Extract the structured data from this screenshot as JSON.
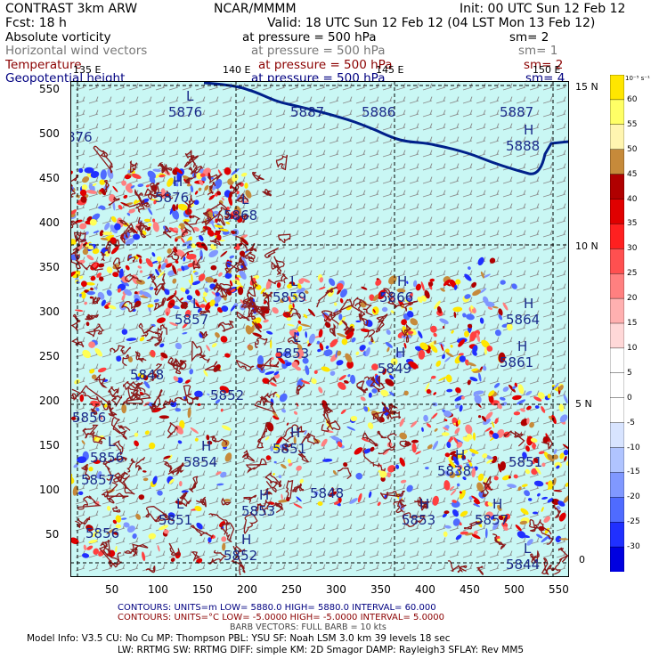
{
  "header": {
    "row1_left": "CONTRAST 3km ARW",
    "row1_center": "NCAR/MMMM",
    "row1_right": "Init: 00 UTC Sun 12 Feb 12",
    "row2_left": "Fcst: 18 h",
    "row2_right": "Valid: 18 UTC Sun 12 Feb 12 (04 LST Mon 13 Feb 12)",
    "fields": [
      {
        "name": "Absolute vorticity",
        "level": "at pressure =  500 hPa",
        "smooth": "sm= 2",
        "color": "#000000"
      },
      {
        "name": "Horizontal wind vectors",
        "level": "at pressure =  500 hPa",
        "smooth": "sm= 1",
        "color": "#777777"
      },
      {
        "name": "Temperature",
        "level": "at pressure =  500 hPa",
        "smooth": "sm= 2",
        "color": "#8b0000"
      },
      {
        "name": "Geopotential height",
        "level": "at pressure =  500 hPa",
        "smooth": "sm= 4",
        "color": "#000080"
      }
    ]
  },
  "map": {
    "x_ticks": [
      "50",
      "100",
      "150",
      "200",
      "250",
      "300",
      "350",
      "400",
      "450",
      "500",
      "550"
    ],
    "y_ticks": [
      "50",
      "100",
      "150",
      "200",
      "250",
      "300",
      "350",
      "400",
      "450",
      "500",
      "550"
    ],
    "lon_labels": [
      "135 E",
      "140 E",
      "145 E",
      "150 E"
    ],
    "lat_labels": [
      "15 N",
      "10 N",
      "5 N",
      "0"
    ],
    "height_labels": [
      {
        "mark": "L",
        "value": "5876"
      },
      {
        "mark": "",
        "value": "5887"
      },
      {
        "mark": "",
        "value": "5886"
      },
      {
        "mark": "",
        "value": "5887"
      },
      {
        "mark": "H",
        "value": "5888"
      },
      {
        "mark": "",
        "value": "876"
      },
      {
        "mark": "H",
        "value": "5876"
      },
      {
        "mark": "L",
        "value": "5868"
      },
      {
        "mark": "L",
        "value": "5859"
      },
      {
        "mark": "H",
        "value": "5866"
      },
      {
        "mark": "H",
        "value": "5864"
      },
      {
        "mark": "L",
        "value": "5857"
      },
      {
        "mark": "L",
        "value": "5853"
      },
      {
        "mark": "H",
        "value": "5849"
      },
      {
        "mark": "H",
        "value": "5861"
      },
      {
        "mark": "",
        "value": "5848"
      },
      {
        "mark": "",
        "value": "5852"
      },
      {
        "mark": "",
        "value": "5856"
      },
      {
        "mark": "H",
        "value": "5851"
      },
      {
        "mark": "L",
        "value": "5856"
      },
      {
        "mark": "H",
        "value": "5854"
      },
      {
        "mark": "H",
        "value": "5838"
      },
      {
        "mark": "",
        "value": "5851"
      },
      {
        "mark": "",
        "value": "5857"
      },
      {
        "mark": "",
        "value": "5848"
      },
      {
        "mark": "L",
        "value": "5851"
      },
      {
        "mark": "H",
        "value": "5853"
      },
      {
        "mark": "H",
        "value": "5853"
      },
      {
        "mark": "H",
        "value": "5857"
      },
      {
        "mark": "",
        "value": "5856"
      },
      {
        "mark": "H",
        "value": "5852"
      },
      {
        "mark": "L",
        "value": "5844"
      },
      {
        "mark": "",
        "value": "5847"
      },
      {
        "mark": "",
        "value": "5861"
      }
    ]
  },
  "colorbar": {
    "unit": "10⁻⁵ s⁻¹",
    "labels": [
      "60",
      "55",
      "50",
      "45",
      "40",
      "35",
      "30",
      "25",
      "20",
      "15",
      "10",
      "5",
      "0",
      "-5",
      "-10",
      "-15",
      "-20",
      "-25",
      "-30"
    ],
    "colors": [
      "#ffe600",
      "#ffff66",
      "#fff5b0",
      "#c68a3a",
      "#b00000",
      "#e00000",
      "#ff2020",
      "#ff5050",
      "#ff8080",
      "#ffb0b0",
      "#ffd8d8",
      "#ffffff",
      "#ffffff",
      "#ffffff",
      "#d8e4ff",
      "#b0c4ff",
      "#8098ff",
      "#4f6bff",
      "#2030ff",
      "#0000e0"
    ]
  },
  "footer": {
    "contours1": "CONTOURS:  UNITS=m   LOW=   5880.0      HIGH=  5880.0      INTERVAL=   60.000",
    "contours2": "CONTOURS:  UNITS=°C   LOW=  -5.0000      HIGH=  -5.0000      INTERVAL=    5.0000",
    "barbs": "BARB VECTORS:  FULL BARB = 10 kts",
    "model1": "Model Info: V3.5      CU: No Cu     MP: Thompson     PBL: YSU        SF: Noah LSM     3.0 km   39 levels   18 sec",
    "model2": "LW: RRTMG     SW: RRTMG    DIFF: simple KM: 2D Smagor DAMP: Rayleigh3  SFLAY: Rev MM5"
  }
}
